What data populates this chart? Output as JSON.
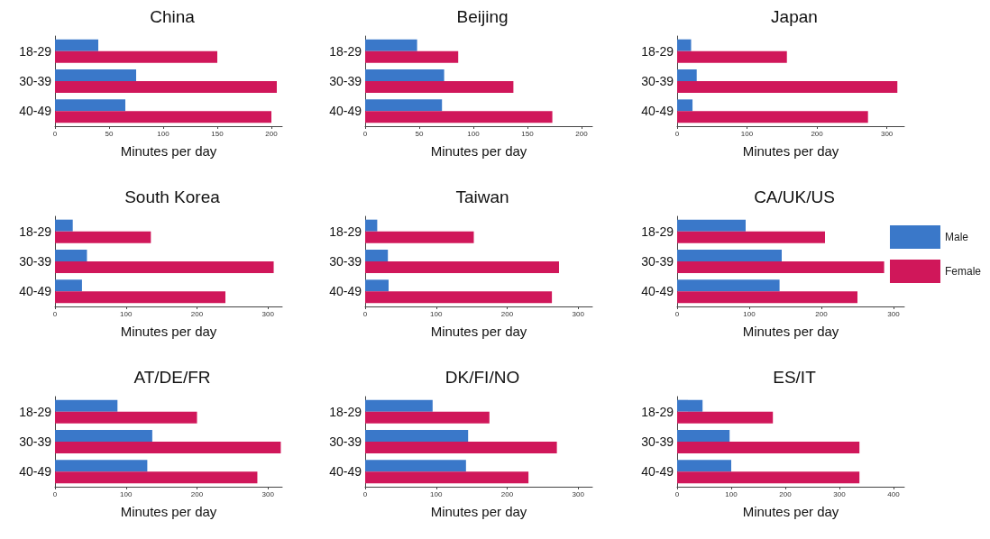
{
  "chart_data": [
    {
      "type": "bar",
      "orientation": "horizontal",
      "title": "China",
      "xlabel": "Minutes per day",
      "categories": [
        "18-29",
        "30-39",
        "40-49"
      ],
      "xlim": [
        0,
        210
      ],
      "xticks": [
        0,
        50,
        100,
        150,
        200
      ],
      "series": [
        {
          "color": "#3a78c9",
          "values": [
            40,
            75,
            65
          ]
        },
        {
          "color": "#d0175a",
          "values": [
            150,
            205,
            200
          ]
        }
      ]
    },
    {
      "type": "bar",
      "orientation": "horizontal",
      "title": "Beijing",
      "xlabel": "Minutes per day",
      "categories": [
        "18-29",
        "30-39",
        "40-49"
      ],
      "xlim": [
        0,
        210
      ],
      "xticks": [
        0,
        50,
        100,
        150,
        200
      ],
      "series": [
        {
          "color": "#3a78c9",
          "values": [
            48,
            73,
            71
          ]
        },
        {
          "color": "#d0175a",
          "values": [
            86,
            137,
            173
          ]
        }
      ]
    },
    {
      "type": "bar",
      "orientation": "horizontal",
      "title": "Japan",
      "xlabel": "Minutes per day",
      "categories": [
        "18-29",
        "30-39",
        "40-49"
      ],
      "xlim": [
        0,
        325
      ],
      "xticks": [
        0,
        100,
        200,
        300
      ],
      "series": [
        {
          "color": "#3a78c9",
          "values": [
            20,
            28,
            22
          ]
        },
        {
          "color": "#d0175a",
          "values": [
            157,
            315,
            273
          ]
        }
      ]
    },
    {
      "type": "bar",
      "orientation": "horizontal",
      "title": "South Korea",
      "xlabel": "Minutes per day",
      "categories": [
        "18-29",
        "30-39",
        "40-49"
      ],
      "xlim": [
        0,
        320
      ],
      "xticks": [
        0,
        100,
        200,
        300
      ],
      "series": [
        {
          "color": "#3a78c9",
          "values": [
            25,
            45,
            38
          ]
        },
        {
          "color": "#d0175a",
          "values": [
            135,
            308,
            240
          ]
        }
      ]
    },
    {
      "type": "bar",
      "orientation": "horizontal",
      "title": "Taiwan",
      "xlabel": "Minutes per day",
      "categories": [
        "18-29",
        "30-39",
        "40-49"
      ],
      "xlim": [
        0,
        320
      ],
      "xticks": [
        0,
        100,
        200,
        300
      ],
      "series": [
        {
          "color": "#3a78c9",
          "values": [
            17,
            32,
            33
          ]
        },
        {
          "color": "#d0175a",
          "values": [
            153,
            273,
            263
          ]
        }
      ]
    },
    {
      "type": "bar",
      "orientation": "horizontal",
      "title": "CA/UK/US",
      "xlabel": "Minutes per day",
      "categories": [
        "18-29",
        "30-39",
        "40-49"
      ],
      "xlim": [
        0,
        315
      ],
      "xticks": [
        0,
        100,
        200,
        300
      ],
      "legend": "right",
      "series": [
        {
          "name": "Male",
          "color": "#3a78c9",
          "values": [
            95,
            145,
            142
          ]
        },
        {
          "name": "Female",
          "color": "#d0175a",
          "values": [
            205,
            287,
            250
          ]
        }
      ]
    },
    {
      "type": "bar",
      "orientation": "horizontal",
      "title": "AT/DE/FR",
      "xlabel": "Minutes per day",
      "categories": [
        "18-29",
        "30-39",
        "40-49"
      ],
      "xlim": [
        0,
        320
      ],
      "xticks": [
        0,
        100,
        200,
        300
      ],
      "series": [
        {
          "color": "#3a78c9",
          "values": [
            88,
            137,
            130
          ]
        },
        {
          "color": "#d0175a",
          "values": [
            200,
            318,
            285
          ]
        }
      ]
    },
    {
      "type": "bar",
      "orientation": "horizontal",
      "title": "DK/FI/NO",
      "xlabel": "Minutes per day",
      "categories": [
        "18-29",
        "30-39",
        "40-49"
      ],
      "xlim": [
        0,
        320
      ],
      "xticks": [
        0,
        100,
        200,
        300
      ],
      "series": [
        {
          "color": "#3a78c9",
          "values": [
            95,
            145,
            142
          ]
        },
        {
          "color": "#d0175a",
          "values": [
            175,
            270,
            230
          ]
        }
      ]
    },
    {
      "type": "bar",
      "orientation": "horizontal",
      "title": "ES/IT",
      "xlabel": "Minutes per day",
      "categories": [
        "18-29",
        "30-39",
        "40-49"
      ],
      "xlim": [
        0,
        420
      ],
      "xticks": [
        0,
        100,
        200,
        300,
        400
      ],
      "series": [
        {
          "color": "#3a78c9",
          "values": [
            47,
            97,
            100
          ]
        },
        {
          "color": "#d0175a",
          "values": [
            177,
            337,
            337
          ]
        }
      ]
    }
  ]
}
